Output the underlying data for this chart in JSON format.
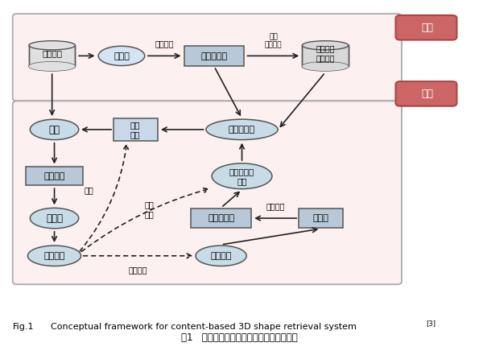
{
  "fig_caption_en": "Fig.1    Conceptual framework for content-based 3D shape retrieval system",
  "fig_caption_superscript": "[3]",
  "fig_caption_cn": "图1   基于内容的三维模型检索系统概念框架",
  "offline_label": "线下",
  "online_label": "线上",
  "offline_bg": "#fdf0f0",
  "online_bg": "#fdf0f0",
  "section_edge": "#aaaaaa",
  "red_label_bg": "#cc6666",
  "red_label_edge": "#aa4444",
  "ellipse_blue": "#c8dce8",
  "ellipse_light": "#ddeef8",
  "rect_grey": "#b8c8d8",
  "rect_light": "#c8d8e8",
  "cylinder_grey": "#d8d8d8",
  "arrow_color": "#222222"
}
